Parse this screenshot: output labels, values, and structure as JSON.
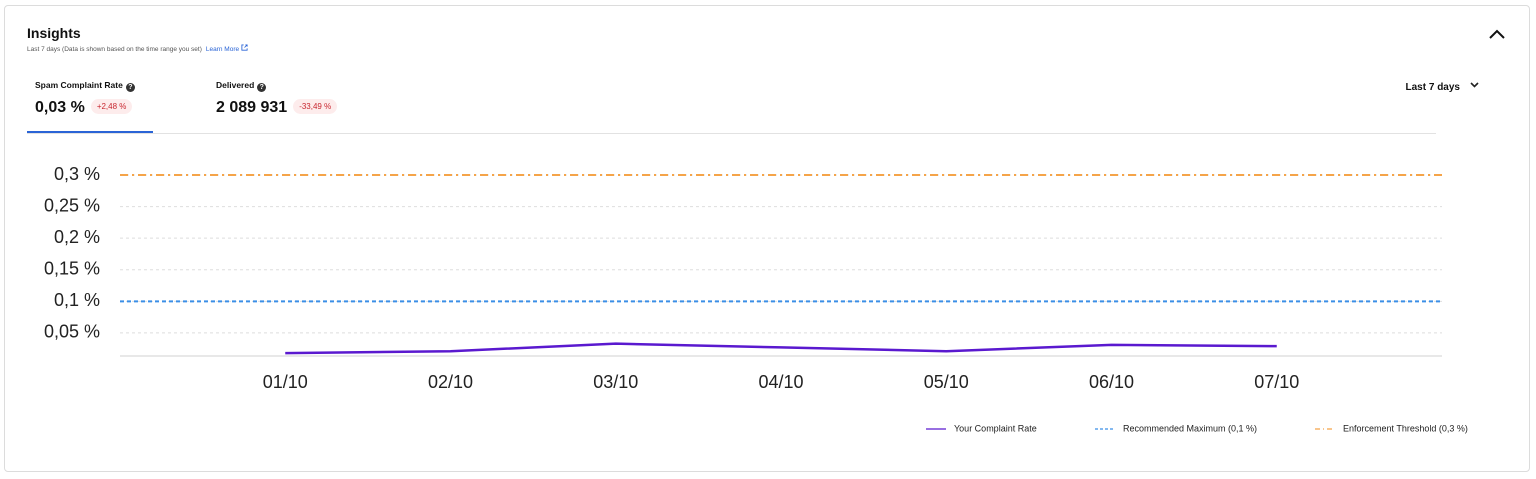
{
  "header": {
    "title": "Insights",
    "subtitle": "Last 7 days (Data is shown based on the time range you set)",
    "link": "Learn More"
  },
  "tabs": [
    {
      "label": "Spam Complaint Rate",
      "value": "0,03 %",
      "change": "+2,48 %"
    },
    {
      "label": "Delivered",
      "value": "2 089 931",
      "change": "-33,49 %"
    }
  ],
  "range": "Last 7 days",
  "chart_data": {
    "type": "line",
    "categories": [
      "01/10",
      "02/10",
      "03/10",
      "04/10",
      "05/10",
      "06/10",
      "07/10"
    ],
    "series": [
      {
        "name": "Your Complaint Rate",
        "color": "#5a19cf",
        "values": [
          0.018,
          0.021,
          0.033,
          0.027,
          0.021,
          0.031,
          0.029
        ]
      }
    ],
    "reference_lines": [
      {
        "name": "Recommended Maximum (0,1 %)",
        "color": "#3b8fe6",
        "value": 0.1,
        "style": "dashed"
      },
      {
        "name": "Enforcement Threshold (0,3 %)",
        "color": "#f5a449",
        "value": 0.3,
        "style": "dash-dot"
      }
    ],
    "ylim": [
      0.015,
      0.3
    ],
    "yticks": [
      {
        "value": 0.05,
        "label": "0,05 %"
      },
      {
        "value": 0.1,
        "label": "0,1 %"
      },
      {
        "value": 0.15,
        "label": "0,15 %"
      },
      {
        "value": 0.2,
        "label": "0,2 %"
      },
      {
        "value": 0.25,
        "label": "0,25 %"
      },
      {
        "value": 0.3,
        "label": "0,3 %"
      }
    ],
    "grid": true
  }
}
